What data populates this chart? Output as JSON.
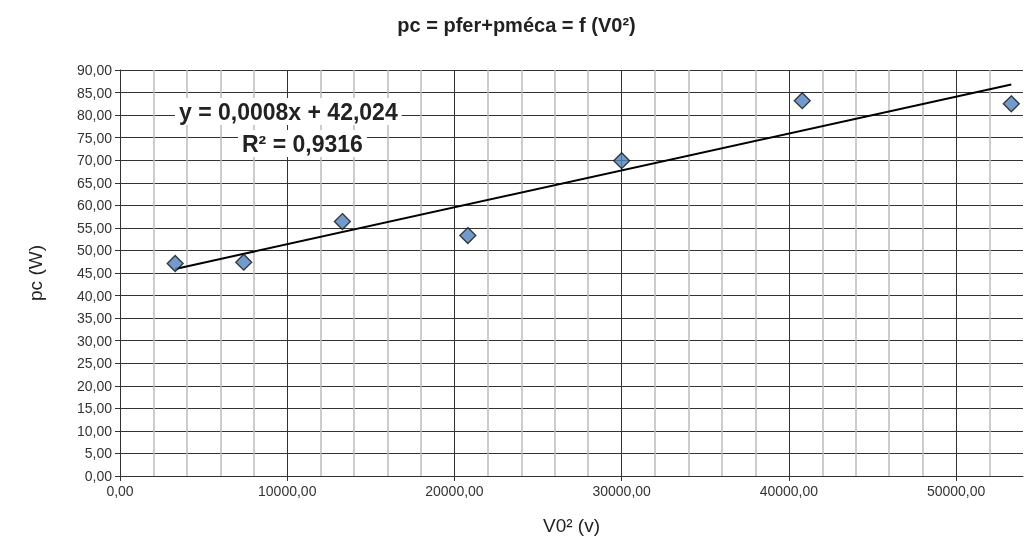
{
  "chart_data": {
    "type": "scatter",
    "title": "pc = pfer+pméca = f (V0²)",
    "xlabel": "V0² (v)",
    "ylabel": "pc (W)",
    "xlim": [
      0,
      54000
    ],
    "xticks": [
      {
        "value": 0,
        "label": "0,00"
      },
      {
        "value": 10000,
        "label": "10000,00"
      },
      {
        "value": 20000,
        "label": "20000,00"
      },
      {
        "value": 30000,
        "label": "30000,00"
      },
      {
        "value": 40000,
        "label": "40000,00"
      },
      {
        "value": 50000,
        "label": "50000,00"
      }
    ],
    "ylim": [
      0,
      90
    ],
    "yticks": [
      {
        "value": 0,
        "label": "0,00"
      },
      {
        "value": 5,
        "label": "5,00"
      },
      {
        "value": 10,
        "label": "10,00"
      },
      {
        "value": 15,
        "label": "15,00"
      },
      {
        "value": 20,
        "label": "20,00"
      },
      {
        "value": 25,
        "label": "25,00"
      },
      {
        "value": 30,
        "label": "30,00"
      },
      {
        "value": 35,
        "label": "35,00"
      },
      {
        "value": 40,
        "label": "40,00"
      },
      {
        "value": 45,
        "label": "45,00"
      },
      {
        "value": 50,
        "label": "50,00"
      },
      {
        "value": 55,
        "label": "55,00"
      },
      {
        "value": 60,
        "label": "60,00"
      },
      {
        "value": 65,
        "label": "65,00"
      },
      {
        "value": 70,
        "label": "70,00"
      },
      {
        "value": 75,
        "label": "75,00"
      },
      {
        "value": 80,
        "label": "80,00"
      },
      {
        "value": 85,
        "label": "85,00"
      },
      {
        "value": 90,
        "label": "90,00"
      }
    ],
    "grid": true,
    "series": [
      {
        "color": "#4f81bd",
        "marker": "diamond",
        "x": [
          3300,
          7400,
          13300,
          20800,
          30000,
          40800,
          53300
        ],
        "values": [
          47.1,
          47.4,
          56.4,
          53.3,
          69.9,
          83.2,
          82.5
        ]
      },
      {
        "type": "line",
        "color": "#000000",
        "marker": "none",
        "x": [
          3300,
          53300
        ],
        "values": [
          45.9,
          86.8
        ]
      }
    ],
    "annotations": [
      "y = 0,0008x + 42,024",
      "R² = 0,9316"
    ]
  }
}
